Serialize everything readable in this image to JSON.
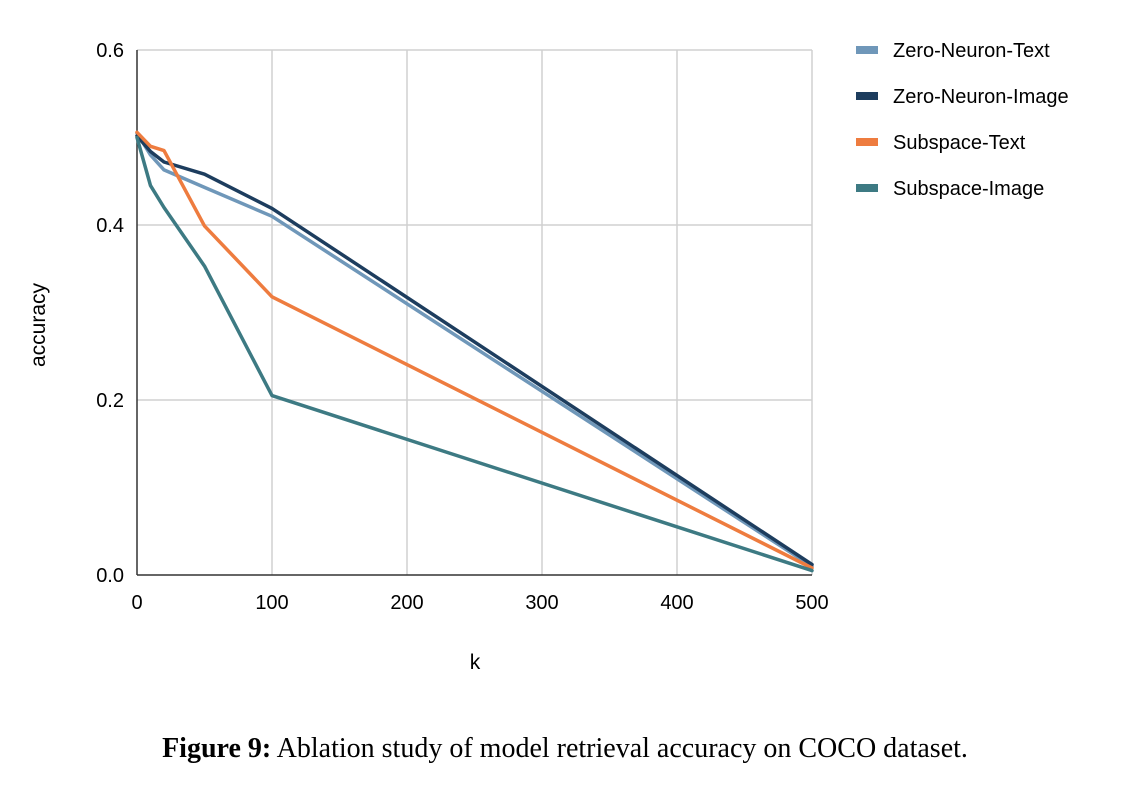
{
  "chart_data": {
    "type": "line",
    "xlabel": "k",
    "ylabel": "accuracy",
    "xlim": [
      0,
      500
    ],
    "ylim": [
      0,
      0.6
    ],
    "x_ticks": [
      0,
      100,
      200,
      300,
      400,
      500
    ],
    "y_ticks": [
      "0.0",
      "0.2",
      "0.4",
      "0.6"
    ],
    "grid": true,
    "legend_position": "right",
    "series": [
      {
        "name": "Zero-Neuron-Text",
        "color": "#6f97b9",
        "x": [
          0,
          10,
          20,
          50,
          100,
          500
        ],
        "y": [
          0.505,
          0.48,
          0.463,
          0.443,
          0.41,
          0.01
        ]
      },
      {
        "name": "Zero-Neuron-Image",
        "color": "#1d3d5e",
        "x": [
          0,
          10,
          20,
          50,
          100,
          500
        ],
        "y": [
          0.502,
          0.484,
          0.472,
          0.458,
          0.419,
          0.012
        ]
      },
      {
        "name": "Subspace-Text",
        "color": "#ee7c3f",
        "x": [
          0,
          10,
          20,
          50,
          100,
          500
        ],
        "y": [
          0.506,
          0.49,
          0.485,
          0.399,
          0.318,
          0.008
        ]
      },
      {
        "name": "Subspace-Image",
        "color": "#3d7a83",
        "x": [
          0,
          10,
          20,
          50,
          100,
          500
        ],
        "y": [
          0.5,
          0.445,
          0.42,
          0.353,
          0.205,
          0.005
        ]
      }
    ]
  },
  "caption": {
    "label": "Figure 9:",
    "text": "Ablation study of model retrieval accuracy on COCO dataset."
  }
}
